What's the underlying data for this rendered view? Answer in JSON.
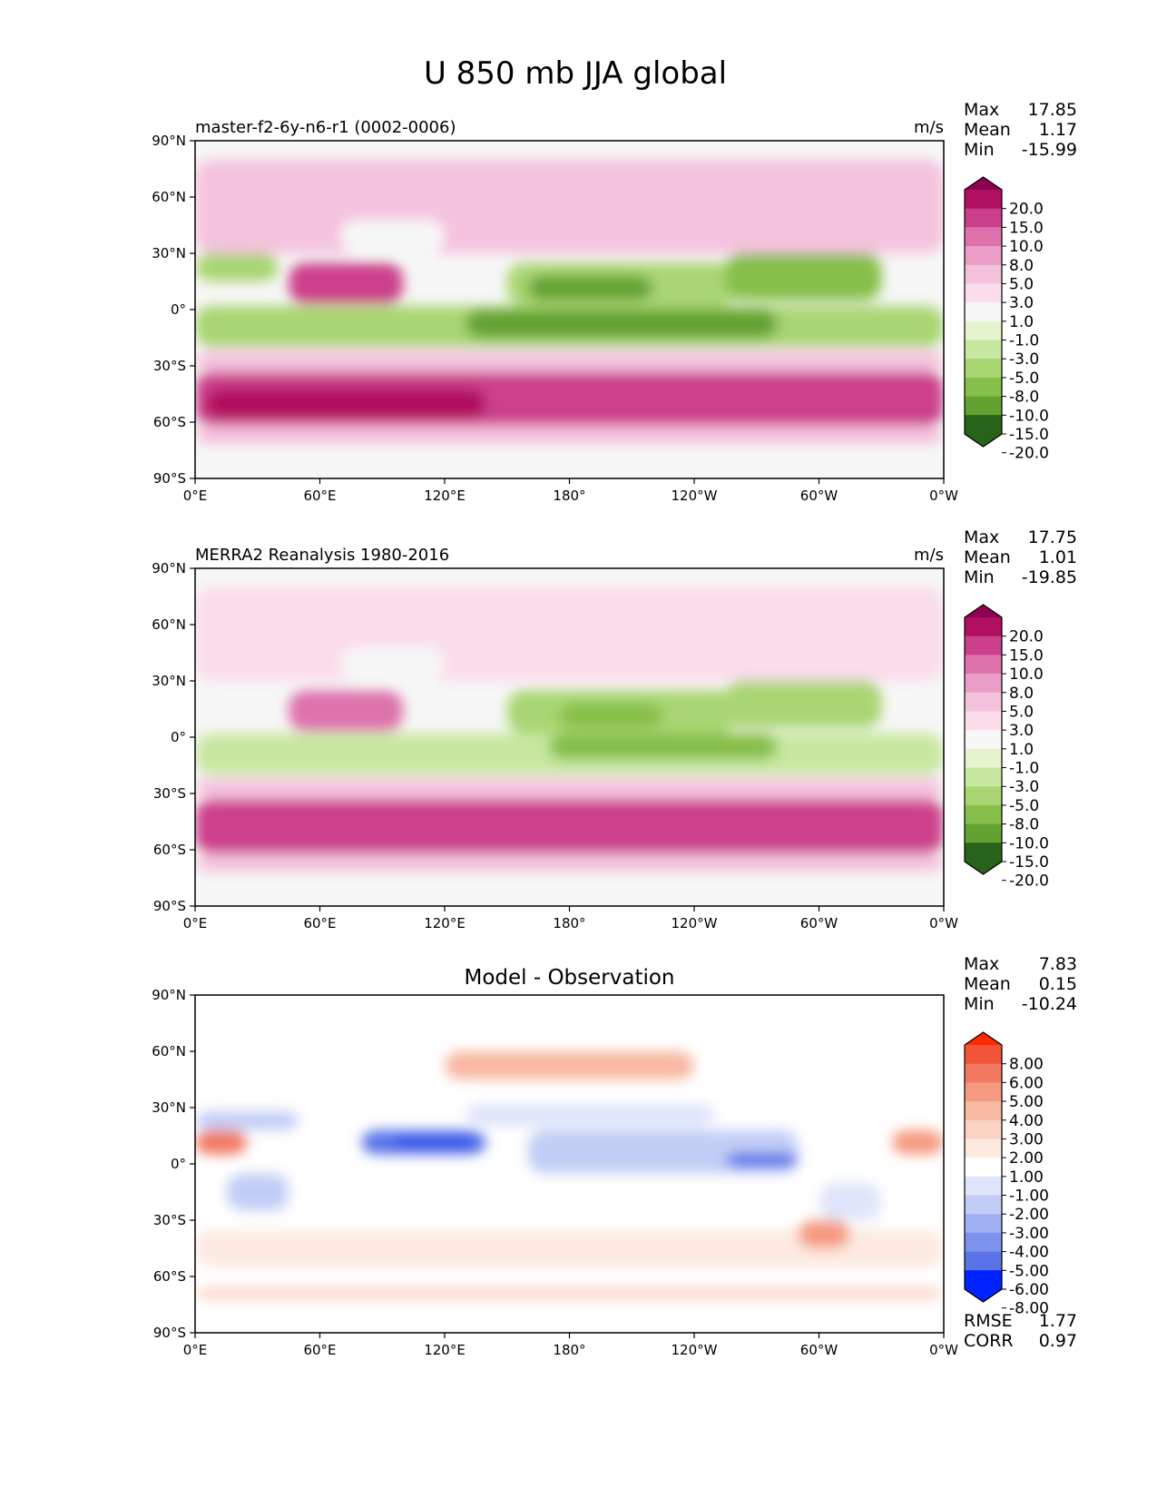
{
  "figure_title": "U 850 mb JJA global",
  "chart_data": [
    {
      "type": "heatmap",
      "subtitle_left": "master-f2-6y-n6-r1 (0002-0006)",
      "units": "m/s",
      "center_title": "",
      "x_ticks": [
        "0°E",
        "60°E",
        "120°E",
        "180°",
        "120°W",
        "60°W",
        "0°W"
      ],
      "y_ticks": [
        "90°N",
        "60°N",
        "30°N",
        "0°",
        "30°S",
        "60°S",
        "90°S"
      ],
      "xlim": [
        0,
        360
      ],
      "ylim": [
        -90,
        90
      ],
      "stats": [
        {
          "label": "Max",
          "value": "17.85"
        },
        {
          "label": "Mean",
          "value": "1.17"
        },
        {
          "label": "Min",
          "value": "-15.99"
        }
      ],
      "colorbar": {
        "labels": [
          "20.0",
          "15.0",
          "10.0",
          "8.0",
          "5.0",
          "3.0",
          "1.0",
          "-1.0",
          "-3.0",
          "-5.0",
          "-8.0",
          "-10.0",
          "-15.0",
          "-20.0"
        ],
        "colors": [
          "#8e0152",
          "#b0105f",
          "#cc3f8c",
          "#dd72ad",
          "#ea9dc7",
          "#f4c2dd",
          "#fadceb",
          "#f7f7f7",
          "#e6f3cf",
          "#c8e7a0",
          "#a9d572",
          "#86bf4a",
          "#62a230",
          "#44811f",
          "#276419"
        ]
      },
      "regions": [
        {
          "lon": [
            0,
            360
          ],
          "lat": [
            -62,
            -33
          ],
          "value": 12
        },
        {
          "lon": [
            5,
            140
          ],
          "lat": [
            -58,
            -42
          ],
          "value": 16
        },
        {
          "lon": [
            0,
            360
          ],
          "lat": [
            -33,
            -22
          ],
          "value": 4
        },
        {
          "lon": [
            0,
            360
          ],
          "lat": [
            -72,
            -62
          ],
          "value": 4
        },
        {
          "lon": [
            0,
            360
          ],
          "lat": [
            -88,
            -74
          ],
          "value": 0
        },
        {
          "lon": [
            0,
            360
          ],
          "lat": [
            -20,
            2
          ],
          "value": -6
        },
        {
          "lon": [
            130,
            280
          ],
          "lat": [
            -15,
            0
          ],
          "value": -11
        },
        {
          "lon": [
            150,
            260
          ],
          "lat": [
            2,
            25
          ],
          "value": -6
        },
        {
          "lon": [
            160,
            220
          ],
          "lat": [
            5,
            18
          ],
          "value": -11
        },
        {
          "lon": [
            255,
            330
          ],
          "lat": [
            5,
            30
          ],
          "value": -9
        },
        {
          "lon": [
            0,
            40
          ],
          "lat": [
            15,
            30
          ],
          "value": -6
        },
        {
          "lon": [
            45,
            100
          ],
          "lat": [
            3,
            25
          ],
          "value": 11
        },
        {
          "lon": [
            125,
            290
          ],
          "lat": [
            40,
            62
          ],
          "value": 7
        },
        {
          "lon": [
            280,
            360
          ],
          "lat": [
            45,
            65
          ],
          "value": 6
        },
        {
          "lon": [
            0,
            360
          ],
          "lat": [
            30,
            80
          ],
          "value": 3
        },
        {
          "lon": [
            70,
            120
          ],
          "lat": [
            30,
            48
          ],
          "value": 0
        }
      ]
    },
    {
      "type": "heatmap",
      "subtitle_left": "MERRA2 Reanalysis 1980-2016",
      "units": "m/s",
      "center_title": "",
      "x_ticks": [
        "0°E",
        "60°E",
        "120°E",
        "180°",
        "120°W",
        "60°W",
        "0°W"
      ],
      "y_ticks": [
        "90°N",
        "60°N",
        "30°N",
        "0°",
        "30°S",
        "60°S",
        "90°S"
      ],
      "xlim": [
        0,
        360
      ],
      "ylim": [
        -90,
        90
      ],
      "stats": [
        {
          "label": "Max",
          "value": "17.75"
        },
        {
          "label": "Mean",
          "value": "1.01"
        },
        {
          "label": "Min",
          "value": "-19.85"
        }
      ],
      "colorbar": {
        "labels": [
          "20.0",
          "15.0",
          "10.0",
          "8.0",
          "5.0",
          "3.0",
          "1.0",
          "-1.0",
          "-3.0",
          "-5.0",
          "-8.0",
          "-10.0",
          "-15.0",
          "-20.0"
        ],
        "colors": [
          "#8e0152",
          "#b0105f",
          "#cc3f8c",
          "#dd72ad",
          "#ea9dc7",
          "#f4c2dd",
          "#fadceb",
          "#f7f7f7",
          "#e6f3cf",
          "#c8e7a0",
          "#a9d572",
          "#86bf4a",
          "#62a230",
          "#44811f",
          "#276419"
        ]
      },
      "regions": [
        {
          "lon": [
            0,
            360
          ],
          "lat": [
            -62,
            -33
          ],
          "value": 11
        },
        {
          "lon": [
            20,
            120
          ],
          "lat": [
            -55,
            -42
          ],
          "value": 14
        },
        {
          "lon": [
            300,
            360
          ],
          "lat": [
            -58,
            -42
          ],
          "value": 13
        },
        {
          "lon": [
            0,
            360
          ],
          "lat": [
            -33,
            -22
          ],
          "value": 4
        },
        {
          "lon": [
            0,
            360
          ],
          "lat": [
            -72,
            -62
          ],
          "value": 3
        },
        {
          "lon": [
            0,
            360
          ],
          "lat": [
            -88,
            -74
          ],
          "value": 0
        },
        {
          "lon": [
            0,
            360
          ],
          "lat": [
            -20,
            2
          ],
          "value": -5
        },
        {
          "lon": [
            170,
            280
          ],
          "lat": [
            -12,
            2
          ],
          "value": -9
        },
        {
          "lon": [
            150,
            260
          ],
          "lat": [
            2,
            25
          ],
          "value": -6
        },
        {
          "lon": [
            175,
            225
          ],
          "lat": [
            5,
            18
          ],
          "value": -9
        },
        {
          "lon": [
            255,
            330
          ],
          "lat": [
            5,
            30
          ],
          "value": -7
        },
        {
          "lon": [
            45,
            100
          ],
          "lat": [
            3,
            25
          ],
          "value": 9
        },
        {
          "lon": [
            130,
            290
          ],
          "lat": [
            38,
            58
          ],
          "value": 4
        },
        {
          "lon": [
            0,
            360
          ],
          "lat": [
            30,
            80
          ],
          "value": 2
        },
        {
          "lon": [
            70,
            120
          ],
          "lat": [
            30,
            48
          ],
          "value": 0
        }
      ]
    },
    {
      "type": "heatmap",
      "subtitle_left": "",
      "units": "",
      "center_title": "Model - Observation",
      "x_ticks": [
        "0°E",
        "60°E",
        "120°E",
        "180°",
        "120°W",
        "60°W",
        "0°W"
      ],
      "y_ticks": [
        "90°N",
        "60°N",
        "30°N",
        "0°",
        "30°S",
        "60°S",
        "90°S"
      ],
      "xlim": [
        0,
        360
      ],
      "ylim": [
        -90,
        90
      ],
      "stats": [
        {
          "label": "Max",
          "value": "7.83"
        },
        {
          "label": "Mean",
          "value": "0.15"
        },
        {
          "label": "Min",
          "value": "-10.24"
        }
      ],
      "extra_stats": [
        {
          "label": "RMSE",
          "value": "1.77"
        },
        {
          "label": "CORR",
          "value": "0.97"
        }
      ],
      "colorbar": {
        "labels": [
          "8.00",
          "6.00",
          "5.00",
          "4.00",
          "3.00",
          "2.00",
          "1.00",
          "-1.00",
          "-2.00",
          "-3.00",
          "-4.00",
          "-5.00",
          "-6.00",
          "-8.00"
        ],
        "colors": [
          "#ff2a00",
          "#f2543a",
          "#f27a60",
          "#f59a80",
          "#f8b8a2",
          "#fbd3c4",
          "#fde9e0",
          "#ffffff",
          "#dfe5fa",
          "#c2cdf6",
          "#9fb0f0",
          "#7d92ec",
          "#5a74e8",
          "#3556ea",
          "#0022ff"
        ]
      },
      "regions": [
        {
          "lon": [
            0,
            360
          ],
          "lat": [
            -55,
            -35
          ],
          "value": 1.5
        },
        {
          "lon": [
            0,
            25
          ],
          "lat": [
            5,
            18
          ],
          "value": 5
        },
        {
          "lon": [
            335,
            360
          ],
          "lat": [
            5,
            18
          ],
          "value": 4
        },
        {
          "lon": [
            0,
            50
          ],
          "lat": [
            18,
            28
          ],
          "value": -3
        },
        {
          "lon": [
            80,
            140
          ],
          "lat": [
            5,
            18
          ],
          "value": -6
        },
        {
          "lon": [
            95,
            135
          ],
          "lat": [
            8,
            15
          ],
          "value": -8
        },
        {
          "lon": [
            160,
            290
          ],
          "lat": [
            -5,
            18
          ],
          "value": -3
        },
        {
          "lon": [
            255,
            290
          ],
          "lat": [
            -2,
            6
          ],
          "value": -6
        },
        {
          "lon": [
            130,
            250
          ],
          "lat": [
            20,
            32
          ],
          "value": -2
        },
        {
          "lon": [
            120,
            240
          ],
          "lat": [
            45,
            60
          ],
          "value": 3
        },
        {
          "lon": [
            300,
            330
          ],
          "lat": [
            -30,
            -10
          ],
          "value": -2
        },
        {
          "lon": [
            290,
            315
          ],
          "lat": [
            -45,
            -30
          ],
          "value": 4
        },
        {
          "lon": [
            0,
            360
          ],
          "lat": [
            -72,
            -66
          ],
          "value": 2.5
        },
        {
          "lon": [
            15,
            45
          ],
          "lat": [
            -25,
            -5
          ],
          "value": -2.5
        }
      ]
    }
  ]
}
